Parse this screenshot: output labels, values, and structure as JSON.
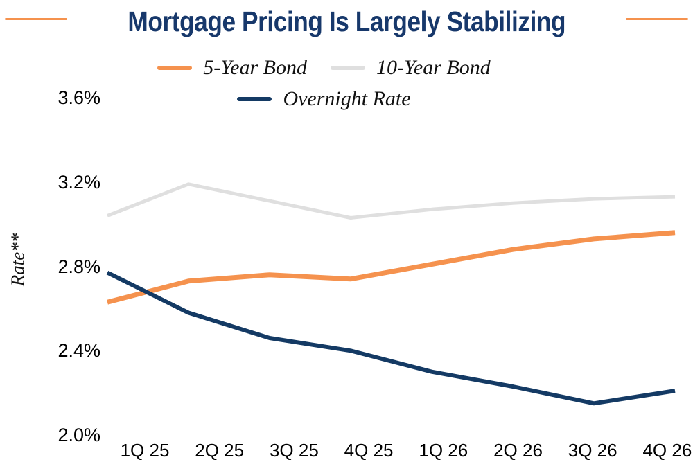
{
  "title": "Mortgage Pricing Is Largely Stabilizing",
  "colors": {
    "title_navy": "#17386B",
    "accent_orange": "#F5924E",
    "line_gray": "#DFDFDF",
    "line_navy": "#143A64"
  },
  "chart_data": {
    "type": "line",
    "title": "Mortgage Pricing Is Largely Stabilizing",
    "ylabel": "Rate**",
    "xlabel": "",
    "ylim": [
      2.0,
      3.6
    ],
    "ytick_labels": [
      "3.6%",
      "3.2%",
      "2.8%",
      "2.4%",
      "2.0%"
    ],
    "categories": [
      "1Q 25",
      "2Q 25",
      "3Q 25",
      "4Q 25",
      "1Q 26",
      "2Q 26",
      "3Q 26",
      "4Q 26"
    ],
    "grid": "off",
    "legend_position": "top-center",
    "series": [
      {
        "name": "5-Year Bond",
        "color": "#F5924E",
        "stroke_width": 7,
        "values": [
          2.63,
          2.73,
          2.76,
          2.74,
          2.81,
          2.88,
          2.93,
          2.96
        ]
      },
      {
        "name": "10-Year Bond",
        "color": "#DFDFDF",
        "stroke_width": 5,
        "values": [
          3.04,
          3.19,
          3.11,
          3.03,
          3.07,
          3.1,
          3.12,
          3.13
        ]
      },
      {
        "name": "Overnight Rate",
        "color": "#143A64",
        "stroke_width": 6,
        "values": [
          2.77,
          2.58,
          2.46,
          2.4,
          2.3,
          2.23,
          2.15,
          2.21
        ]
      }
    ]
  }
}
